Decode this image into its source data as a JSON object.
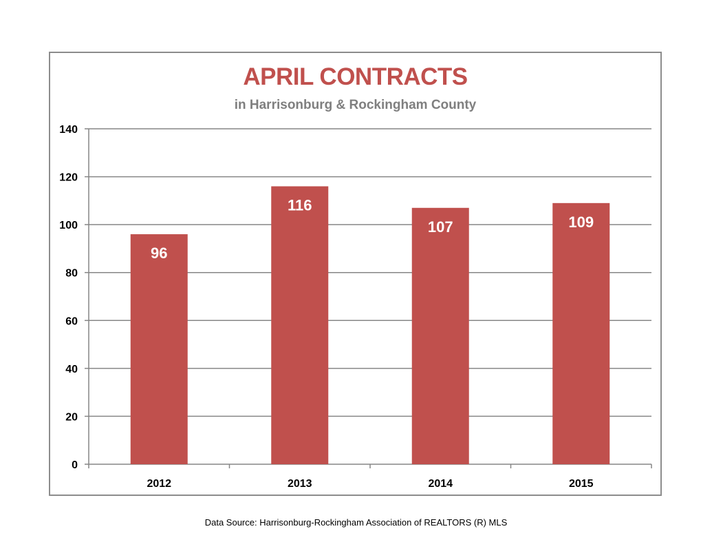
{
  "colors": {
    "bar": "#c0504d",
    "title": "#c0504d",
    "subtitle": "#7f7f7f",
    "grid": "#868686",
    "frame": "#8c8c8c"
  },
  "chart_data": {
    "type": "bar",
    "title": "APRIL CONTRACTS",
    "subtitle": "in Harrisonburg & Rockingham County",
    "categories": [
      "2012",
      "2013",
      "2014",
      "2015"
    ],
    "values": [
      96,
      116,
      107,
      109
    ],
    "value_labels": [
      "96",
      "116",
      "107",
      "109"
    ],
    "xlabel": "",
    "ylabel": "",
    "ylim": [
      0,
      140
    ],
    "yticks": [
      "0",
      "20",
      "40",
      "60",
      "80",
      "100",
      "120",
      "140"
    ],
    "grid": true,
    "legend": "none"
  },
  "footer": {
    "source": "Data Source: Harrisonburg-Rockingham Association of REALTORS (R) MLS"
  }
}
